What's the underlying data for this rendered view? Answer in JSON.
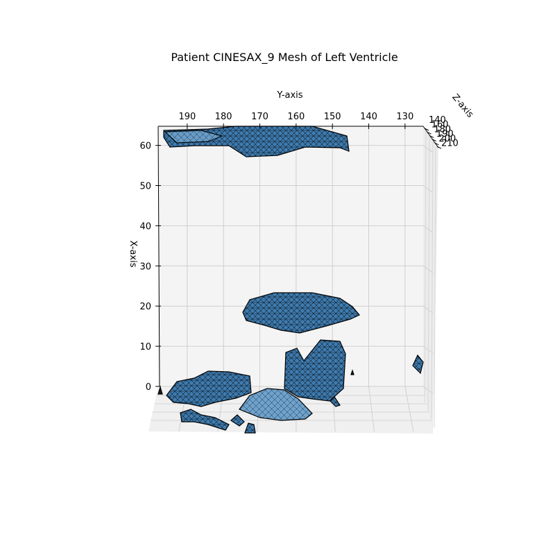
{
  "chart_data": {
    "type": "mesh3d",
    "title": "Patient CINESAX_9 Mesh of Left Ventricle",
    "ylabel_top": "Y-axis",
    "xlabel_left": "X-axis",
    "zlabel": "Z-axis",
    "y_ticks": [
      190,
      180,
      170,
      160,
      150,
      140,
      130
    ],
    "x_ticks": [
      0,
      10,
      20,
      30,
      40,
      50,
      60
    ],
    "z_ticks": [
      "140",
      "160",
      "180",
      "190",
      "200",
      "210"
    ],
    "y_range": [
      198,
      125
    ],
    "x_range": [
      0,
      62
    ],
    "grid": true
  },
  "colors": {
    "mesh_fill": "#3f7cb0",
    "mesh_light": "#7fb1d8",
    "mesh_edge": "#000000",
    "pane": "#f2f2f2",
    "grid": "#c8c8c8"
  }
}
